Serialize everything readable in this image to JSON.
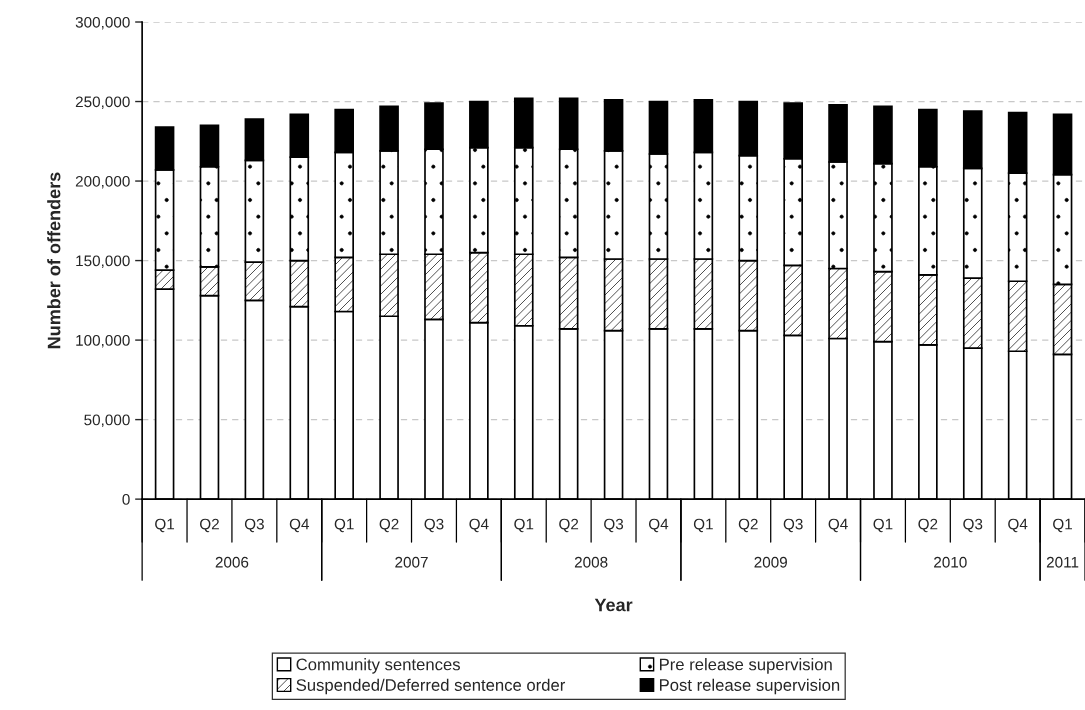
{
  "chart_data": {
    "type": "bar",
    "stacked": true,
    "xlabel": "Year",
    "ylabel": "Number of offenders",
    "categories": [
      "Q1",
      "Q2",
      "Q3",
      "Q4",
      "Q1",
      "Q2",
      "Q3",
      "Q4",
      "Q1",
      "Q2",
      "Q3",
      "Q4",
      "Q1",
      "Q2",
      "Q3",
      "Q4",
      "Q1",
      "Q2",
      "Q3",
      "Q4",
      "Q1"
    ],
    "annotations": [
      "2006",
      "2007",
      "2008",
      "2009",
      "2010",
      "2011"
    ],
    "series": [
      {
        "name": "Community sentences",
        "color": "#ffffff",
        "values": [
          132000,
          128000,
          125000,
          121000,
          118000,
          115000,
          113000,
          111000,
          109000,
          107000,
          106000,
          107000,
          107000,
          106000,
          103000,
          101000,
          99000,
          97000,
          95000,
          93000,
          91000
        ]
      },
      {
        "name": "Suspended/Deferred sentence order",
        "color": "#000000",
        "values": [
          12000,
          18000,
          24000,
          29000,
          34000,
          39000,
          41000,
          44000,
          45000,
          45000,
          45000,
          44000,
          44000,
          44000,
          44000,
          44000,
          44000,
          44000,
          44000,
          44000,
          44000
        ]
      },
      {
        "name": "Pre release supervision",
        "color": "#000000",
        "values": [
          63000,
          63000,
          64000,
          65000,
          66000,
          65000,
          66000,
          66000,
          67000,
          68000,
          68000,
          66000,
          67000,
          66000,
          67000,
          67000,
          68000,
          68000,
          69000,
          68000,
          69000
        ]
      },
      {
        "name": "Post release supervision",
        "color": "#000000",
        "values": [
          27000,
          26000,
          26000,
          27000,
          27000,
          28000,
          29000,
          29000,
          31000,
          32000,
          32000,
          33000,
          33000,
          34000,
          35000,
          36000,
          36000,
          36000,
          36000,
          38000,
          38000
        ]
      }
    ],
    "ylim": [
      0,
      300000
    ],
    "yticks": [
      {
        "value": 0,
        "label": "0"
      },
      {
        "value": 50000,
        "label": "50,000"
      },
      {
        "value": 100000,
        "label": "100,000"
      },
      {
        "value": 150000,
        "label": "150,000"
      },
      {
        "value": 200000,
        "label": "200,000"
      },
      {
        "value": 250000,
        "label": "250,000"
      },
      {
        "value": 300000,
        "label": "300,000"
      }
    ],
    "grid": "y",
    "legend": "bottom"
  }
}
